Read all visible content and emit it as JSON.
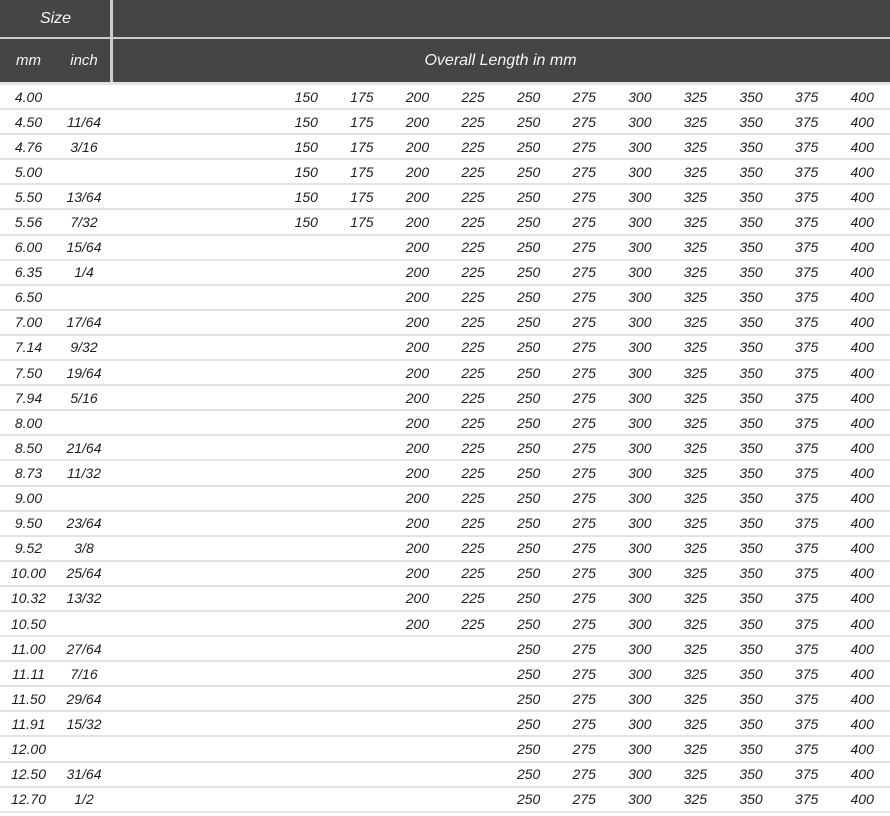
{
  "header": {
    "size_label": "Size",
    "mm_label": "mm",
    "inch_label": "inch",
    "overall_label": "Overall Length in mm"
  },
  "length_columns": [
    "150",
    "175",
    "200",
    "225",
    "250",
    "275",
    "300",
    "325",
    "350",
    "375",
    "400"
  ],
  "colors": {
    "header_bg": "#454545",
    "header_text": "#f4f4f4",
    "header_divider": "#cdcdcd",
    "row_bg": "#ffffff",
    "row_separator": "#e3e3e3",
    "data_text": "#1e1e1e"
  },
  "rows": [
    {
      "mm": "4.00",
      "inch": "",
      "lengths": [
        "150",
        "175",
        "200",
        "225",
        "250",
        "275",
        "300",
        "325",
        "350",
        "375",
        "400"
      ]
    },
    {
      "mm": "4.50",
      "inch": "11/64",
      "lengths": [
        "150",
        "175",
        "200",
        "225",
        "250",
        "275",
        "300",
        "325",
        "350",
        "375",
        "400"
      ]
    },
    {
      "mm": "4.76",
      "inch": "3/16",
      "lengths": [
        "150",
        "175",
        "200",
        "225",
        "250",
        "275",
        "300",
        "325",
        "350",
        "375",
        "400"
      ]
    },
    {
      "mm": "5.00",
      "inch": "",
      "lengths": [
        "150",
        "175",
        "200",
        "225",
        "250",
        "275",
        "300",
        "325",
        "350",
        "375",
        "400"
      ]
    },
    {
      "mm": "5.50",
      "inch": "13/64",
      "lengths": [
        "150",
        "175",
        "200",
        "225",
        "250",
        "275",
        "300",
        "325",
        "350",
        "375",
        "400"
      ]
    },
    {
      "mm": "5.56",
      "inch": "7/32",
      "lengths": [
        "150",
        "175",
        "200",
        "225",
        "250",
        "275",
        "300",
        "325",
        "350",
        "375",
        "400"
      ]
    },
    {
      "mm": "6.00",
      "inch": "15/64",
      "lengths": [
        "200",
        "225",
        "250",
        "275",
        "300",
        "325",
        "350",
        "375",
        "400"
      ]
    },
    {
      "mm": "6.35",
      "inch": "1/4",
      "lengths": [
        "200",
        "225",
        "250",
        "275",
        "300",
        "325",
        "350",
        "375",
        "400"
      ]
    },
    {
      "mm": "6.50",
      "inch": "",
      "lengths": [
        "200",
        "225",
        "250",
        "275",
        "300",
        "325",
        "350",
        "375",
        "400"
      ]
    },
    {
      "mm": "7.00",
      "inch": "17/64",
      "lengths": [
        "200",
        "225",
        "250",
        "275",
        "300",
        "325",
        "350",
        "375",
        "400"
      ]
    },
    {
      "mm": "7.14",
      "inch": "9/32",
      "lengths": [
        "200",
        "225",
        "250",
        "275",
        "300",
        "325",
        "350",
        "375",
        "400"
      ]
    },
    {
      "mm": "7.50",
      "inch": "19/64",
      "lengths": [
        "200",
        "225",
        "250",
        "275",
        "300",
        "325",
        "350",
        "375",
        "400"
      ]
    },
    {
      "mm": "7.94",
      "inch": "5/16",
      "lengths": [
        "200",
        "225",
        "250",
        "275",
        "300",
        "325",
        "350",
        "375",
        "400"
      ]
    },
    {
      "mm": "8.00",
      "inch": "",
      "lengths": [
        "200",
        "225",
        "250",
        "275",
        "300",
        "325",
        "350",
        "375",
        "400"
      ]
    },
    {
      "mm": "8.50",
      "inch": "21/64",
      "lengths": [
        "200",
        "225",
        "250",
        "275",
        "300",
        "325",
        "350",
        "375",
        "400"
      ]
    },
    {
      "mm": "8.73",
      "inch": "11/32",
      "lengths": [
        "200",
        "225",
        "250",
        "275",
        "300",
        "325",
        "350",
        "375",
        "400"
      ]
    },
    {
      "mm": "9.00",
      "inch": "",
      "lengths": [
        "200",
        "225",
        "250",
        "275",
        "300",
        "325",
        "350",
        "375",
        "400"
      ]
    },
    {
      "mm": "9.50",
      "inch": "23/64",
      "lengths": [
        "200",
        "225",
        "250",
        "275",
        "300",
        "325",
        "350",
        "375",
        "400"
      ]
    },
    {
      "mm": "9.52",
      "inch": "3/8",
      "lengths": [
        "200",
        "225",
        "250",
        "275",
        "300",
        "325",
        "350",
        "375",
        "400"
      ]
    },
    {
      "mm": "10.00",
      "inch": "25/64",
      "lengths": [
        "200",
        "225",
        "250",
        "275",
        "300",
        "325",
        "350",
        "375",
        "400"
      ]
    },
    {
      "mm": "10.32",
      "inch": "13/32",
      "lengths": [
        "200",
        "225",
        "250",
        "275",
        "300",
        "325",
        "350",
        "375",
        "400"
      ]
    },
    {
      "mm": "10.50",
      "inch": "",
      "lengths": [
        "200",
        "225",
        "250",
        "275",
        "300",
        "325",
        "350",
        "375",
        "400"
      ]
    },
    {
      "mm": "11.00",
      "inch": "27/64",
      "lengths": [
        "250",
        "275",
        "300",
        "325",
        "350",
        "375",
        "400"
      ]
    },
    {
      "mm": "11.11",
      "inch": "7/16",
      "lengths": [
        "250",
        "275",
        "300",
        "325",
        "350",
        "375",
        "400"
      ]
    },
    {
      "mm": "11.50",
      "inch": "29/64",
      "lengths": [
        "250",
        "275",
        "300",
        "325",
        "350",
        "375",
        "400"
      ]
    },
    {
      "mm": "11.91",
      "inch": "15/32",
      "lengths": [
        "250",
        "275",
        "300",
        "325",
        "350",
        "375",
        "400"
      ]
    },
    {
      "mm": "12.00",
      "inch": "",
      "lengths": [
        "250",
        "275",
        "300",
        "325",
        "350",
        "375",
        "400"
      ]
    },
    {
      "mm": "12.50",
      "inch": "31/64",
      "lengths": [
        "250",
        "275",
        "300",
        "325",
        "350",
        "375",
        "400"
      ]
    },
    {
      "mm": "12.70",
      "inch": "1/2",
      "lengths": [
        "250",
        "275",
        "300",
        "325",
        "350",
        "375",
        "400"
      ]
    }
  ]
}
